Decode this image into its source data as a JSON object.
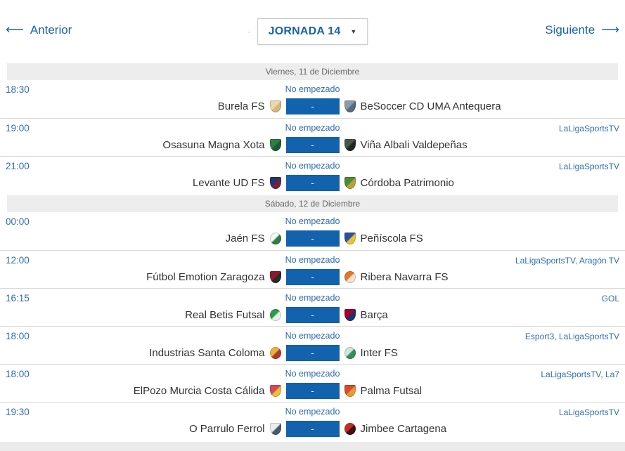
{
  "toolbar": {
    "prev_label": "Anterior",
    "next_label": "Siguiente",
    "left_arrow": "⟵",
    "right_arrow": "⟶",
    "separator": "·",
    "round_selector": {
      "value": "JORNADA 14",
      "caret": "▼"
    }
  },
  "colors": {
    "accent_blue": "#1b63a7",
    "link_blue": "#2f6db2",
    "score_box_blue": "#1262ad",
    "date_header_bg": "#ededed",
    "date_header_text": "#666666",
    "row_divider": "#d9d9d9",
    "team_text": "#333333",
    "page_bottom_bg": "#ebebeb"
  },
  "sections": [
    {
      "date": "Viernes, 11 de Diciembre",
      "matches": [
        {
          "time": "18:30",
          "status": "No empezado",
          "score": "-",
          "tv": "",
          "home": "Burela FS",
          "away": "BeSoccer CD UMA Antequera",
          "home_badge": {
            "name": "burela-fs-badge",
            "shape": "shield",
            "colors": [
              "#ead9ab",
              "#d2b87e"
            ]
          },
          "away_badge": {
            "name": "uma-antequera-badge",
            "shape": "shield",
            "colors": [
              "#8d9aaa",
              "#5a6a7a"
            ]
          }
        },
        {
          "time": "19:00",
          "status": "No empezado",
          "score": "-",
          "tv": "LaLigaSportsTV",
          "home": "Osasuna Magna Xota",
          "away": "Viña Albali Valdepeñas",
          "home_badge": {
            "name": "osasuna-magna-badge",
            "shape": "shield",
            "colors": [
              "#2e7d44",
              "#1d5c2f"
            ]
          },
          "away_badge": {
            "name": "vina-albali-badge",
            "shape": "shield",
            "colors": [
              "#47564b",
              "#20281f"
            ]
          }
        },
        {
          "time": "21:00",
          "status": "No empezado",
          "score": "-",
          "tv": "LaLigaSportsTV",
          "home": "Levante UD FS",
          "away": "Córdoba Patrimonio",
          "home_badge": {
            "name": "levante-ud-badge",
            "shape": "shield",
            "colors": [
              "#27356b",
              "#7a1f3d"
            ]
          },
          "away_badge": {
            "name": "cordoba-patrimonio-badge",
            "shape": "shield",
            "colors": [
              "#4d8a35",
              "#b8a23a"
            ]
          }
        }
      ]
    },
    {
      "date": "Sábado, 12 de Diciembre",
      "matches": [
        {
          "time": "00:00",
          "status": "No empezado",
          "score": "-",
          "tv": "",
          "home": "Jaén FS",
          "away": "Peñíscola FS",
          "home_badge": {
            "name": "jaen-fs-badge",
            "shape": "round",
            "colors": [
              "#f2f7f2",
              "#2e7d44"
            ]
          },
          "away_badge": {
            "name": "peniscola-fs-badge",
            "shape": "shield",
            "colors": [
              "#2b4ea0",
              "#e8c33a"
            ]
          }
        },
        {
          "time": "12:00",
          "status": "No empezado",
          "score": "-",
          "tv": "LaLigaSportsTV, Aragón TV",
          "home": "Fútbol Emotion Zaragoza",
          "away": "Ribera Navarra FS",
          "home_badge": {
            "name": "zaragoza-badge",
            "shape": "shield",
            "colors": [
              "#8a1c2a",
              "#2a2a2a"
            ]
          },
          "away_badge": {
            "name": "ribera-navarra-badge",
            "shape": "round",
            "colors": [
              "#e2762a",
              "#f3e3d3"
            ]
          }
        },
        {
          "time": "16:15",
          "status": "No empezado",
          "score": "-",
          "tv": "GOL",
          "home": "Real Betis Futsal",
          "away": "Barça",
          "home_badge": {
            "name": "real-betis-badge",
            "shape": "round",
            "colors": [
              "#2e9a4e",
              "#e9f2e9"
            ]
          },
          "away_badge": {
            "name": "barca-badge",
            "shape": "shield",
            "colors": [
              "#a5002c",
              "#16356e"
            ]
          }
        },
        {
          "time": "18:00",
          "status": "No empezado",
          "score": "-",
          "tv": "Esport3, LaLigaSportsTV",
          "home": "Industrias Santa Coloma",
          "away": "Inter FS",
          "home_badge": {
            "name": "santa-coloma-badge",
            "shape": "round",
            "colors": [
              "#e8b33a",
              "#b03a2a"
            ]
          },
          "away_badge": {
            "name": "inter-fs-badge",
            "shape": "round",
            "colors": [
              "#cfe6d9",
              "#3a8a5f"
            ]
          }
        },
        {
          "time": "18:00",
          "status": "No empezado",
          "score": "-",
          "tv": "LaLigaSportsTV, La7",
          "home": "ElPozo Murcia Costa Cálida",
          "away": "Palma Futsal",
          "home_badge": {
            "name": "elpozo-murcia-badge",
            "shape": "shield",
            "colors": [
              "#d84a5a",
              "#e8c33a"
            ]
          },
          "away_badge": {
            "name": "palma-futsal-badge",
            "shape": "shield",
            "colors": [
              "#d84a2a",
              "#e89a3a"
            ]
          }
        },
        {
          "time": "19:30",
          "status": "No empezado",
          "score": "-",
          "tv": "LaLigaSportsTV",
          "home": "O Parrulo Ferrol",
          "away": "Jimbee Cartagena",
          "home_badge": {
            "name": "o-parrulo-badge",
            "shape": "shield",
            "colors": [
              "#e8eef2",
              "#4a5a6a"
            ]
          },
          "away_badge": {
            "name": "jimbee-cartagena-badge",
            "shape": "round",
            "colors": [
              "#c92a2a",
              "#3a1212"
            ]
          }
        }
      ]
    }
  ]
}
